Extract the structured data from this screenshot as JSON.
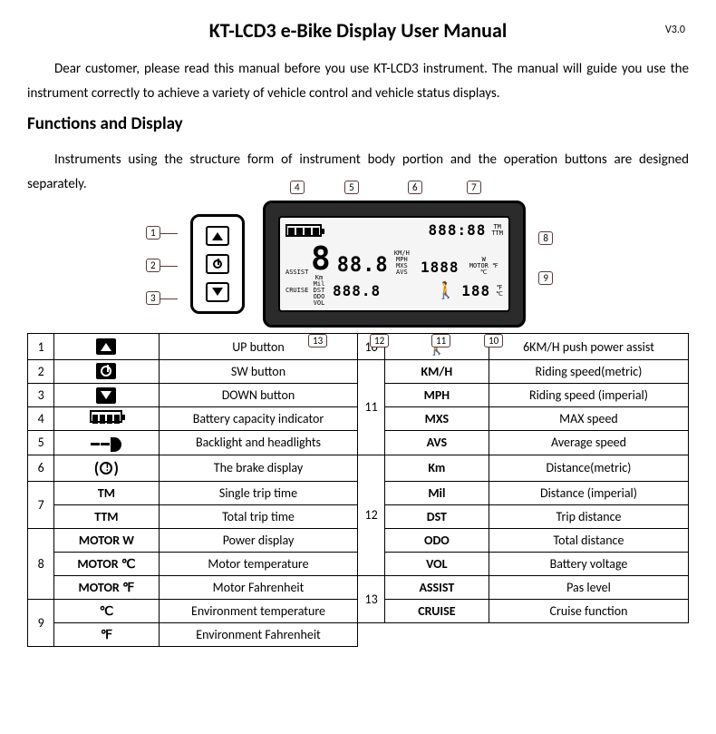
{
  "header": {
    "title": "KT-LCD3 e-Bike Display User Manual",
    "version": "V3.0"
  },
  "intro": "Dear customer, please read this manual before you use KT-LCD3 instrument. The manual will guide you use the instrument correctly to achieve a variety of vehicle control and vehicle status displays.",
  "section_heading": "Functions and Display",
  "subintro": "Instruments using the structure form of instrument body portion and the operation buttons are designed separately.",
  "diagram": {
    "remote_callouts": [
      "1",
      "2",
      "3"
    ],
    "top_callouts": [
      "4",
      "5",
      "6",
      "7"
    ],
    "right_callouts": [
      "8",
      "9"
    ],
    "bottom_callouts": [
      "13",
      "12",
      "11",
      "10"
    ],
    "lcd": {
      "top_digits": "888:88",
      "big_digit": "8",
      "mid_digits": "88.8",
      "right_digits": "1888",
      "bottom_left": "888.8",
      "bottom_right": "188"
    }
  },
  "legend": {
    "left": [
      {
        "num": "1",
        "rowspan": 1,
        "cells": [
          {
            "icon": "up",
            "label": ""
          }
        ],
        "desc": [
          "UP button"
        ]
      },
      {
        "num": "2",
        "rowspan": 1,
        "cells": [
          {
            "icon": "power",
            "label": ""
          }
        ],
        "desc": [
          "SW button"
        ]
      },
      {
        "num": "3",
        "rowspan": 1,
        "cells": [
          {
            "icon": "down",
            "label": ""
          }
        ],
        "desc": [
          "DOWN button"
        ]
      },
      {
        "num": "4",
        "rowspan": 1,
        "cells": [
          {
            "icon": "battery",
            "label": ""
          }
        ],
        "desc": [
          "Battery capacity indicator"
        ]
      },
      {
        "num": "5",
        "rowspan": 1,
        "cells": [
          {
            "icon": "light",
            "label": ""
          }
        ],
        "desc": [
          "Backlight and headlights"
        ]
      },
      {
        "num": "6",
        "rowspan": 1,
        "cells": [
          {
            "icon": "brake",
            "label": ""
          }
        ],
        "desc": [
          "The brake display"
        ]
      },
      {
        "num": "7",
        "rowspan": 2,
        "cells": [
          {
            "icon": "",
            "label": "TM"
          },
          {
            "icon": "",
            "label": "TTM"
          }
        ],
        "desc": [
          "Single trip time",
          "Total trip time"
        ]
      },
      {
        "num": "8",
        "rowspan": 3,
        "cells": [
          {
            "icon": "",
            "label": "MOTOR W"
          },
          {
            "icon": "",
            "label": "MOTOR ℃"
          },
          {
            "icon": "",
            "label": "MOTOR ℉"
          }
        ],
        "desc": [
          "Power display",
          "Motor temperature",
          "Motor Fahrenheit"
        ]
      },
      {
        "num": "9",
        "rowspan": 2,
        "cells": [
          {
            "icon": "",
            "label": "℃"
          },
          {
            "icon": "",
            "label": "℉"
          }
        ],
        "desc": [
          "Environment temperature",
          "Environment Fahrenheit"
        ]
      }
    ],
    "right": [
      {
        "num": "10",
        "rowspan": 1,
        "cells": [
          {
            "icon": "walker",
            "label": ""
          }
        ],
        "desc": [
          "6KM/H push power assist"
        ]
      },
      {
        "num": "11",
        "rowspan": 4,
        "cells": [
          {
            "icon": "",
            "label": "KM/H"
          },
          {
            "icon": "",
            "label": "MPH"
          },
          {
            "icon": "",
            "label": "MXS"
          },
          {
            "icon": "",
            "label": "AVS"
          }
        ],
        "desc": [
          "Riding speed(metric)",
          "Riding speed (imperial)",
          "MAX speed",
          "Average speed"
        ]
      },
      {
        "num": "12",
        "rowspan": 5,
        "cells": [
          {
            "icon": "",
            "label": "Km"
          },
          {
            "icon": "",
            "label": "Mil"
          },
          {
            "icon": "",
            "label": "DST"
          },
          {
            "icon": "",
            "label": "ODO"
          },
          {
            "icon": "",
            "label": "VOL"
          }
        ],
        "desc": [
          "Distance(metric)",
          "Distance (imperial)",
          "Trip distance",
          "Total distance",
          "Battery voltage"
        ]
      },
      {
        "num": "13",
        "rowspan": 2,
        "cells": [
          {
            "icon": "",
            "label": "ASSIST"
          },
          {
            "icon": "",
            "label": "CRUISE"
          }
        ],
        "desc": [
          "Pas level",
          "Cruise function"
        ]
      }
    ]
  },
  "colors": {
    "text": "#000000",
    "bg": "#ffffff",
    "callout_border": "#5b3b3b",
    "display_body": "#2b2b2b",
    "lcd_bg": "#f5f5f5"
  }
}
